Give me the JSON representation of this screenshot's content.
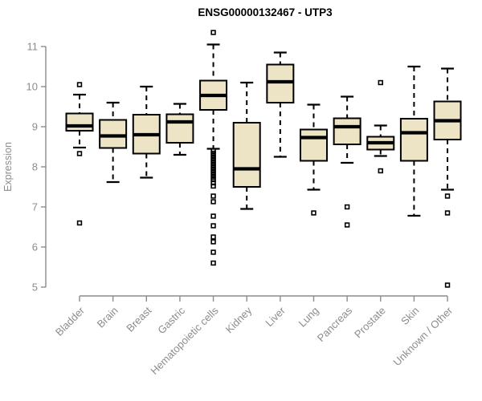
{
  "style": {
    "box_fill": "#ece4c4",
    "box_stroke": "#000000",
    "median_color": "#000000",
    "axis_color": "#8c8c8c",
    "label_color": "#8c8c8c",
    "title_color": "#000000",
    "background": "#ffffff",
    "outlier_marker": "open-square"
  },
  "chart_data": {
    "type": "boxplot",
    "title": "ENSG00000132467 - UTP3",
    "ylabel": "Expression",
    "xlabel": "",
    "ylim": [
      5,
      11
    ],
    "yticks": [
      5,
      6,
      7,
      8,
      9,
      10,
      11
    ],
    "grid": false,
    "legend": "none",
    "x_label_rotation_deg": 45,
    "categories": [
      "Bladder",
      "Brain",
      "Breast",
      "Gastric",
      "Hematopoietic cells",
      "Kidney",
      "Liver",
      "Lung",
      "Pancreas",
      "Prostate",
      "Skin",
      "Unknown / Other"
    ],
    "series": [
      {
        "label": "Bladder",
        "whisker_low": 8.48,
        "q1": 8.9,
        "median": 9.02,
        "q3": 9.33,
        "whisker_high": 9.8,
        "outliers": [
          10.05,
          8.33,
          6.6
        ]
      },
      {
        "label": "Brain",
        "whisker_low": 7.62,
        "q1": 8.47,
        "median": 8.77,
        "q3": 9.17,
        "whisker_high": 9.6,
        "outliers": []
      },
      {
        "label": "Breast",
        "whisker_low": 7.73,
        "q1": 8.33,
        "median": 8.8,
        "q3": 9.3,
        "whisker_high": 10.0,
        "outliers": []
      },
      {
        "label": "Gastric",
        "whisker_low": 8.3,
        "q1": 8.6,
        "median": 9.12,
        "q3": 9.31,
        "whisker_high": 9.57,
        "outliers": []
      },
      {
        "label": "Hematopoietic cells",
        "whisker_low": 8.45,
        "q1": 9.42,
        "median": 9.78,
        "q3": 10.15,
        "whisker_high": 11.05,
        "outliers": [
          11.35,
          8.4,
          8.34,
          8.28,
          8.22,
          8.16,
          8.1,
          8.04,
          7.98,
          7.92,
          7.86,
          7.8,
          7.74,
          7.68,
          7.6,
          7.52,
          7.27,
          7.13,
          6.77,
          6.53,
          6.25,
          6.13,
          5.87,
          5.6
        ]
      },
      {
        "label": "Kidney",
        "whisker_low": 6.95,
        "q1": 7.5,
        "median": 7.95,
        "q3": 9.1,
        "whisker_high": 10.1,
        "outliers": []
      },
      {
        "label": "Liver",
        "whisker_low": 8.25,
        "q1": 9.6,
        "median": 10.12,
        "q3": 10.55,
        "whisker_high": 10.85,
        "outliers": []
      },
      {
        "label": "Lung",
        "whisker_low": 7.43,
        "q1": 8.15,
        "median": 8.73,
        "q3": 8.93,
        "whisker_high": 9.55,
        "outliers": [
          6.85
        ]
      },
      {
        "label": "Pancreas",
        "whisker_low": 8.1,
        "q1": 8.56,
        "median": 9.0,
        "q3": 9.21,
        "whisker_high": 9.75,
        "outliers": [
          7.0,
          6.55
        ]
      },
      {
        "label": "Prostate",
        "whisker_low": 8.27,
        "q1": 8.43,
        "median": 8.6,
        "q3": 8.75,
        "whisker_high": 9.03,
        "outliers": [
          10.1,
          7.9
        ]
      },
      {
        "label": "Skin",
        "whisker_low": 6.78,
        "q1": 8.15,
        "median": 8.85,
        "q3": 9.2,
        "whisker_high": 10.5,
        "outliers": []
      },
      {
        "label": "Unknown / Other",
        "whisker_low": 7.43,
        "q1": 8.68,
        "median": 9.15,
        "q3": 9.63,
        "whisker_high": 10.45,
        "outliers": [
          7.27,
          6.85,
          5.05
        ]
      }
    ]
  }
}
